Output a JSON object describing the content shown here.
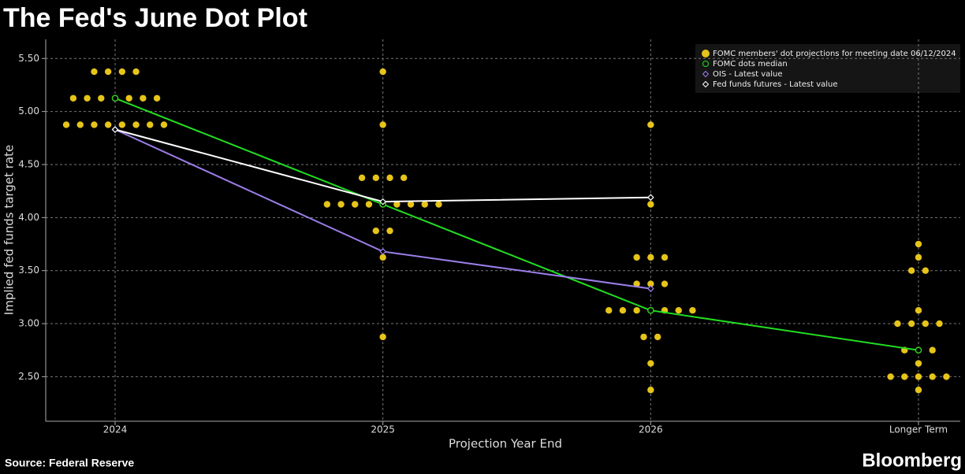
{
  "chart_data": {
    "type": "scatter",
    "title": "The Fed's June Dot Plot",
    "xlabel": "Projection Year End",
    "ylabel": "Implied fed funds target rate",
    "source": "Source: Federal Reserve",
    "brand": "Bloomberg",
    "categories": [
      "2024",
      "2025",
      "2026",
      "Longer Term"
    ],
    "ylim": [
      2.08,
      5.68
    ],
    "yticks": [
      {
        "value": 2.5,
        "label": "2.50"
      },
      {
        "value": 3,
        "label": "3.00"
      },
      {
        "value": 3.5,
        "label": "3.50"
      },
      {
        "value": 4,
        "label": "4.00"
      },
      {
        "value": 4.5,
        "label": "4.50"
      },
      {
        "value": 5,
        "label": "5.00"
      },
      {
        "value": 5.5,
        "label": "5.50"
      }
    ],
    "grid": true,
    "legend": "top-right",
    "series": [
      {
        "name": "FOMC members' dot projections for meeting date 06/12/2024",
        "color": "#e6c419",
        "marker": "dot",
        "values": [
          [
            5.375,
            5.375,
            5.375,
            5.375,
            5.125,
            5.125,
            5.125,
            5.125,
            5.125,
            5.125,
            5.125,
            4.875,
            4.875,
            4.875,
            4.875,
            4.875,
            4.875,
            4.875,
            4.875
          ],
          [
            5.375,
            4.875,
            4.375,
            4.375,
            4.375,
            4.375,
            4.125,
            4.125,
            4.125,
            4.125,
            4.125,
            4.125,
            4.125,
            4.125,
            4.125,
            3.875,
            3.875,
            3.625,
            2.875
          ],
          [
            4.875,
            4.125,
            3.625,
            3.625,
            3.625,
            3.375,
            3.375,
            3.375,
            3.125,
            3.125,
            3.125,
            3.125,
            3.125,
            3.125,
            3.125,
            2.875,
            2.875,
            2.625,
            2.375
          ],
          [
            3.75,
            3.625,
            3.5,
            3.5,
            3.125,
            3.0,
            3.0,
            3.0,
            3.0,
            2.75,
            2.75,
            2.75,
            2.625,
            2.5,
            2.5,
            2.5,
            2.5,
            2.5,
            2.375
          ]
        ]
      },
      {
        "name": "FOMC dots median",
        "color": "#22dd22",
        "marker": "circle",
        "values": [
          5.125,
          4.125,
          3.125,
          2.75
        ]
      },
      {
        "name": "OIS - Latest value",
        "color": "#9b7ee8",
        "marker": "diamond",
        "values": [
          4.83,
          3.68,
          3.33,
          null
        ]
      },
      {
        "name": "Fed funds futures - Latest value",
        "color": "#ffffff",
        "marker": "diamond",
        "values": [
          4.83,
          4.15,
          4.19,
          null
        ]
      }
    ]
  }
}
